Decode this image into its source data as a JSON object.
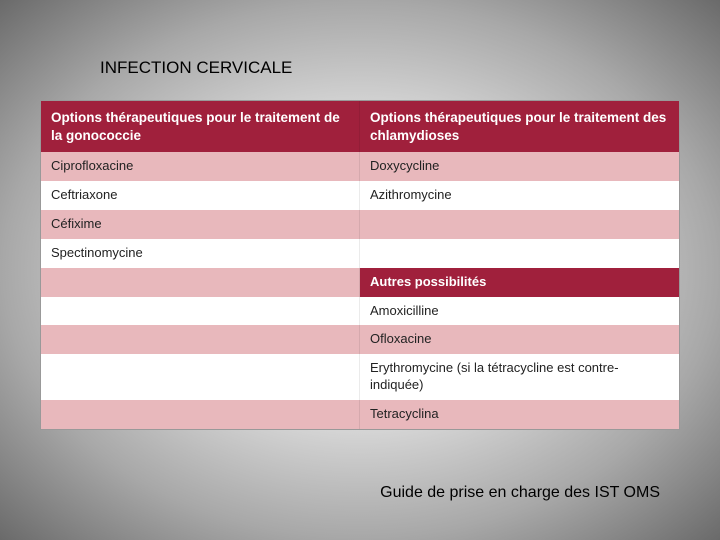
{
  "title": "INFECTION CERVICALE",
  "footer": "Guide de prise en charge des IST  OMS",
  "table": {
    "colors": {
      "header_bg": "#a0203c",
      "header_text": "#ffffff",
      "pink_bg": "#e8b8bc",
      "white_bg": "#ffffff",
      "text": "#222222",
      "border": "#999999"
    },
    "columns": {
      "left_header": "Options thérapeutiques pour le traitement de la gonococcie",
      "right_header": "Options thérapeutiques pour le traitement des chlamydioses"
    },
    "rows": [
      {
        "left": "Ciprofloxacine",
        "right": "Doxycycline",
        "shade": "pink"
      },
      {
        "left": "Ceftriaxone",
        "right": "Azithromycine",
        "shade": "white"
      },
      {
        "left": "Céfixime",
        "right": "",
        "shade": "pink"
      },
      {
        "left": "Spectinomycine",
        "right": "",
        "shade": "white"
      },
      {
        "left": "",
        "right": "Autres possibilités",
        "shade": "subheader"
      },
      {
        "left": "",
        "right": "Amoxicilline",
        "shade": "white"
      },
      {
        "left": "",
        "right": "Ofloxacine",
        "shade": "pink"
      },
      {
        "left": "",
        "right": "Erythromycine (si la tétracycline est contre-indiquée)",
        "shade": "white"
      },
      {
        "left": "",
        "right": "Tetracyclina",
        "shade": "pink"
      }
    ]
  }
}
